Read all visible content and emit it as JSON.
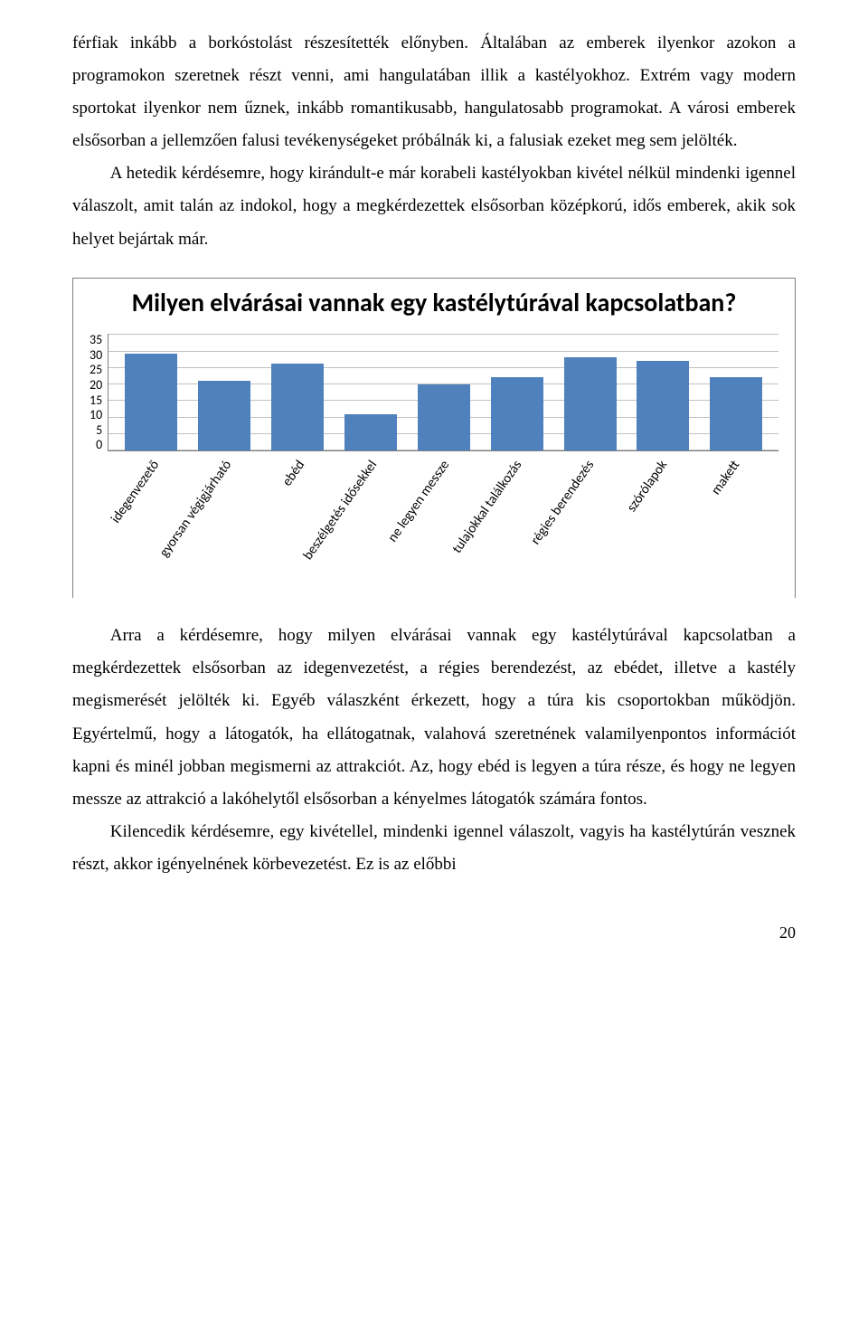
{
  "paragraphs": {
    "p1": "férfiak inkább a borkóstolást részesítették előnyben. Általában az emberek ilyenkor azokon a programokon szeretnek részt venni, ami hangulatában illik a kastélyokhoz. Extrém vagy modern sportokat ilyenkor nem űznek, inkább romantikusabb, hangulatosabb programokat. A városi emberek elsősorban a jellemzően falusi tevékenységeket próbálnák ki, a falusiak ezeket meg sem jelölték.",
    "p2": "A hetedik kérdésemre, hogy kirándult-e már korabeli kastélyokban kivétel nélkül mindenki igennel válaszolt, amit talán az indokol, hogy a megkérdezettek elsősorban középkorú, idős emberek, akik sok helyet bejártak már.",
    "p3": "Arra a kérdésemre, hogy milyen elvárásai vannak egy kastélytúrával kapcsolatban a megkérdezettek elsősorban az idegenvezetést, a régies berendezést, az ebédet, illetve a kastély megismerését jelölték ki. Egyéb válaszként érkezett, hogy a túra kis csoportokban működjön. Egyértelmű, hogy a látogatók, ha ellátogatnak, valahová szeretnének valamilyenpontos információt kapni és minél jobban megismerni az attrakciót. Az, hogy ebéd is legyen a túra része, és hogy ne legyen messze az attrakció a lakóhelytől elsősorban a kényelmes látogatók számára fontos.",
    "p4": "Kilencedik kérdésemre, egy kivétellel, mindenki igennel válaszolt, vagyis ha kastélytúrán vesznek részt, akkor igényelnének körbevezetést. Ez is az előbbi"
  },
  "chart": {
    "type": "bar",
    "title": "Milyen elvárásai vannak egy kastélytúrával kapcsolatban?",
    "ymin": 0,
    "ymax": 35,
    "ytick_step": 5,
    "yticks": [
      "35",
      "30",
      "25",
      "20",
      "15",
      "10",
      "5",
      "0"
    ],
    "categories": [
      "idegenvezető",
      "gyorsan végigjárható",
      "ebéd",
      "beszélgetés idősekkel",
      "ne legyen messze",
      "tulajokkal találkozás",
      "régies berendezés",
      "szórólapok",
      "makett"
    ],
    "values": [
      29,
      21,
      26,
      11,
      20,
      22,
      28,
      27,
      22
    ],
    "bar_color": "#4f81bd",
    "grid_color": "#c0c0c0",
    "axis_color": "#808080",
    "background_color": "#ffffff",
    "title_fontsize": 28,
    "label_fontsize": 15,
    "tick_fontsize": 14
  },
  "page_number": "20"
}
